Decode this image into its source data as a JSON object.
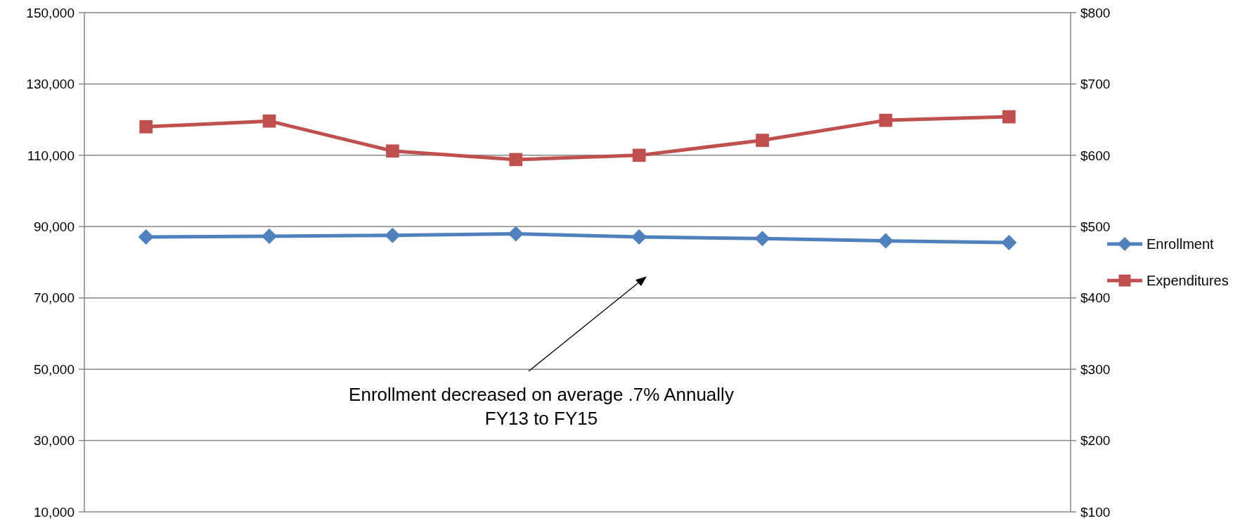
{
  "chart_data": {
    "type": "line",
    "categories": [
      null,
      null,
      null,
      null,
      null,
      null,
      null,
      null
    ],
    "series": [
      {
        "name": "Enrollment",
        "color": "#4f81bd",
        "marker": "diamond",
        "values": [
          87100,
          87300,
          87550,
          88000,
          87100,
          86650,
          86000,
          85500
        ]
      },
      {
        "name": "Expenditures",
        "color": "#c0504d",
        "marker": "square",
        "axis": "y2",
        "values": [
          640,
          648,
          606,
          594,
          600,
          621,
          649,
          654
        ]
      }
    ],
    "ylim": [
      10000,
      150000
    ],
    "yticks": [
      {
        "value": 10000,
        "label": "10,000"
      },
      {
        "value": 30000,
        "label": "30,000"
      },
      {
        "value": 50000,
        "label": "50,000"
      },
      {
        "value": 70000,
        "label": "70,000"
      },
      {
        "value": 90000,
        "label": "90,000"
      },
      {
        "value": 110000,
        "label": "110,000"
      },
      {
        "value": 130000,
        "label": "130,000"
      },
      {
        "value": 150000,
        "label": "150,000"
      }
    ],
    "y2lim": [
      100,
      800
    ],
    "y2ticks": [
      {
        "value": 100,
        "label": "$100"
      },
      {
        "value": 200,
        "label": "$200"
      },
      {
        "value": 300,
        "label": "$300"
      },
      {
        "value": 400,
        "label": "$400"
      },
      {
        "value": 500,
        "label": "$500"
      },
      {
        "value": 600,
        "label": "$600"
      },
      {
        "value": 700,
        "label": "$700"
      },
      {
        "value": 800,
        "label": "$800"
      }
    ],
    "grid": "y",
    "legend": "right",
    "line_style": "solid",
    "annotations": [
      "Enrollment decreased on average .7% Annually\nFY13 to FY15"
    ]
  }
}
